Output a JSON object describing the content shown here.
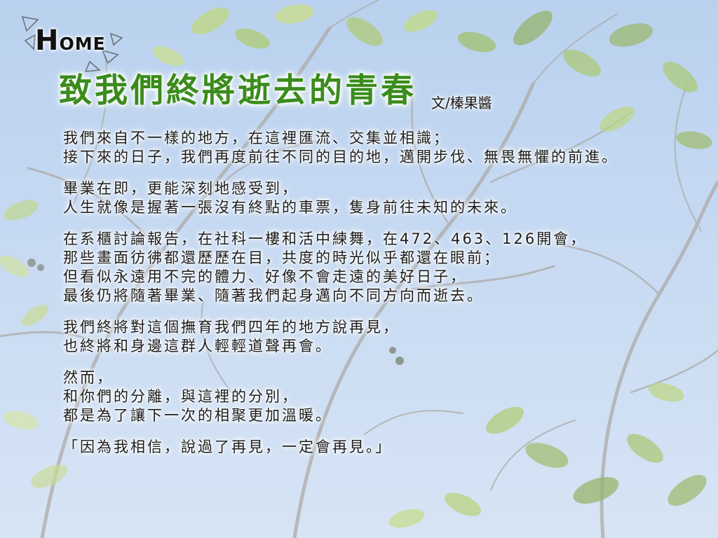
{
  "nav": {
    "home_label": "HOME"
  },
  "article": {
    "title": "致我們終將逝去的青春",
    "author": "文/榛果醬",
    "paragraphs": [
      {
        "lines": [
          "我們來自不一樣的地方，在這裡匯流、交集並相識；",
          "接下來的日子，我們再度前往不同的目的地，邁開步伐、無畏無懼的前進。"
        ]
      },
      {
        "lines": [
          "畢業在即，更能深刻地感受到，",
          "人生就像是握著一張沒有終點的車票，隻身前往未知的未來。"
        ]
      },
      {
        "lines": [
          "在系櫃討論報告，在社科一樓和活中練舞，在472、463、126開會，",
          "那些畫面彷彿都還歷歷在目，共度的時光似乎都還在眼前；",
          "但看似永遠用不完的體力、好像不會走遠的美好日子，",
          "最後仍將隨著畢業、隨著我們起身邁向不同方向而逝去。"
        ]
      },
      {
        "lines": [
          "我們終將對這個撫育我們四年的地方說再見，",
          "也終將和身邊這群人輕輕道聲再會。"
        ]
      },
      {
        "lines": [
          "然而，",
          "和你們的分離，與這裡的分別，",
          "都是為了讓下一次的相聚更加溫暖。"
        ]
      },
      {
        "lines": [
          "「因為我相信，說過了再見，一定會再見。」"
        ]
      }
    ]
  },
  "colors": {
    "title": "#3a8c1c",
    "text": "#1d1d1d",
    "sky": "#b6cfee"
  }
}
